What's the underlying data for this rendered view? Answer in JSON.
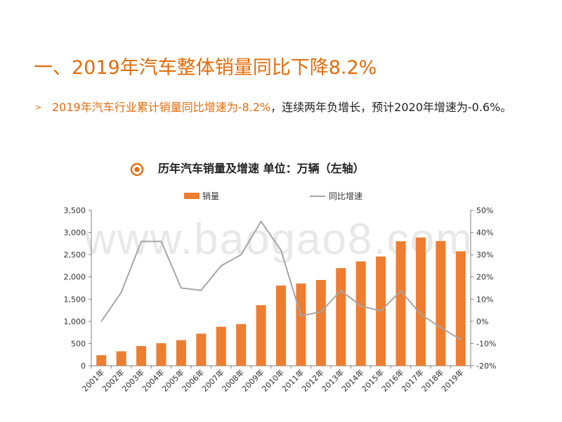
{
  "slide": {
    "title": "一、2019年汽车整体销量同比下降8.2%",
    "bullet_icon": "chevron-right-icon",
    "bullet_highlight": "2019年汽车行业累计销量同比增速为-8.2%",
    "bullet_rest": "，连续两年负增长，预计2020年增速为-0.6%。"
  },
  "chart_heading": {
    "icon": "target-icon",
    "text": "历年汽车销量及增速 单位：万辆（左轴）"
  },
  "watermark": "www.baogao8.com",
  "colors": {
    "accent": "#e46c0a",
    "bar": "#ed7d31",
    "line": "#a6a6a6",
    "text": "#222222"
  },
  "chart_data": {
    "type": "bar",
    "categories": [
      "2001年",
      "2002年",
      "2003年",
      "2004年",
      "2005年",
      "2006年",
      "2007年",
      "2008年",
      "2009年",
      "2010年",
      "2011年",
      "2012年",
      "2013年",
      "2014年",
      "2015年",
      "2016年",
      "2017年",
      "2018年",
      "2019年"
    ],
    "series": [
      {
        "name": "销量",
        "type": "bar",
        "axis": "left",
        "values": [
          237,
          325,
          444,
          507,
          576,
          722,
          879,
          938,
          1364,
          1806,
          1851,
          1931,
          2198,
          2349,
          2460,
          2803,
          2888,
          2808,
          2577
        ]
      },
      {
        "name": "同比增速",
        "type": "line",
        "axis": "right",
        "values": [
          0,
          13,
          36,
          36,
          15,
          14,
          25,
          30,
          45,
          32,
          2.5,
          4.3,
          13.9,
          6.9,
          4.7,
          13.7,
          3.2,
          -2.8,
          -8.2
        ]
      }
    ],
    "y_left": {
      "min": 0,
      "max": 3500,
      "step": 500,
      "ticks": [
        "0",
        "500",
        "1,000",
        "1,500",
        "2,000",
        "2,500",
        "3,000",
        "3,500"
      ]
    },
    "y_right": {
      "min": -20,
      "max": 50,
      "step": 10,
      "ticks": [
        "-20%",
        "-10%",
        "0%",
        "10%",
        "20%",
        "30%",
        "40%",
        "50%"
      ]
    },
    "legend_position": "top",
    "grid": false
  }
}
